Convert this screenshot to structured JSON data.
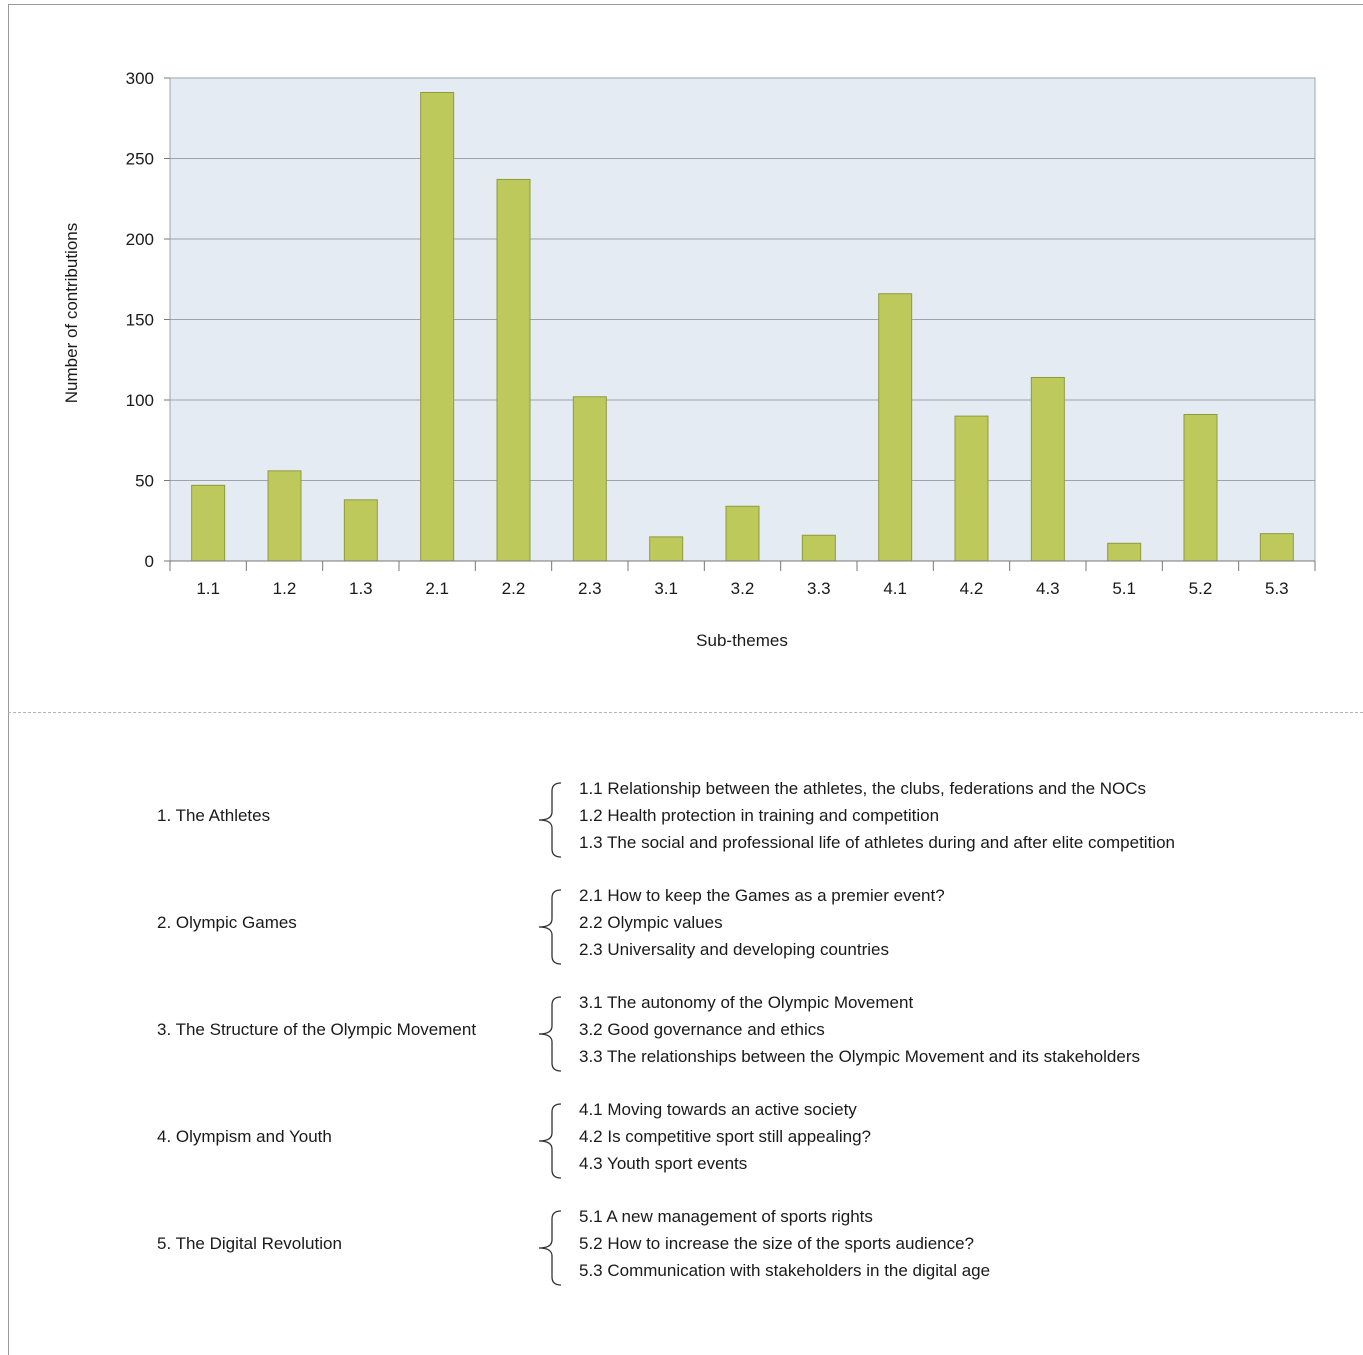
{
  "chart_data": {
    "type": "bar",
    "title": "",
    "xlabel": "Sub-themes",
    "ylabel": "Number of contributions",
    "ylim": [
      0,
      300
    ],
    "yticks": [
      0,
      50,
      100,
      150,
      200,
      250,
      300
    ],
    "grid": true,
    "bar_color": "#bec95c",
    "plot_background": "#e4ebf2",
    "categories": [
      "1.1",
      "1.2",
      "1.3",
      "2.1",
      "2.2",
      "2.3",
      "3.1",
      "3.2",
      "3.3",
      "4.1",
      "4.2",
      "4.3",
      "5.1",
      "5.2",
      "5.3"
    ],
    "values": [
      47,
      56,
      38,
      291,
      237,
      102,
      15,
      34,
      16,
      166,
      90,
      114,
      11,
      91,
      17
    ]
  },
  "themes": [
    {
      "label": "1. The Athletes",
      "subs": [
        "1.1 Relationship between the athletes, the clubs, federations and the NOCs",
        "1.2 Health protection in training and competition",
        "1.3 The social and professional life of athletes during and after elite competition"
      ]
    },
    {
      "label": "2. Olympic Games",
      "subs": [
        "2.1 How to keep the Games as a premier event?",
        "2.2 Olympic values",
        "2.3 Universality and developing countries"
      ]
    },
    {
      "label": "3. The Structure of the Olympic Movement",
      "subs": [
        "3.1 The autonomy of the Olympic Movement",
        "3.2 Good governance and ethics",
        "3.3 The relationships between the Olympic Movement and its stakeholders"
      ]
    },
    {
      "label": "4. Olympism and Youth",
      "subs": [
        "4.1 Moving towards an active society",
        "4.2 Is competitive sport still appealing?",
        "4.3 Youth sport events"
      ]
    },
    {
      "label": "5. The Digital Revolution",
      "subs": [
        "5.1 A new management of sports rights",
        "5.2 How to increase the size of the sports audience?",
        "5.3 Communication with stakeholders in the digital age"
      ]
    }
  ]
}
